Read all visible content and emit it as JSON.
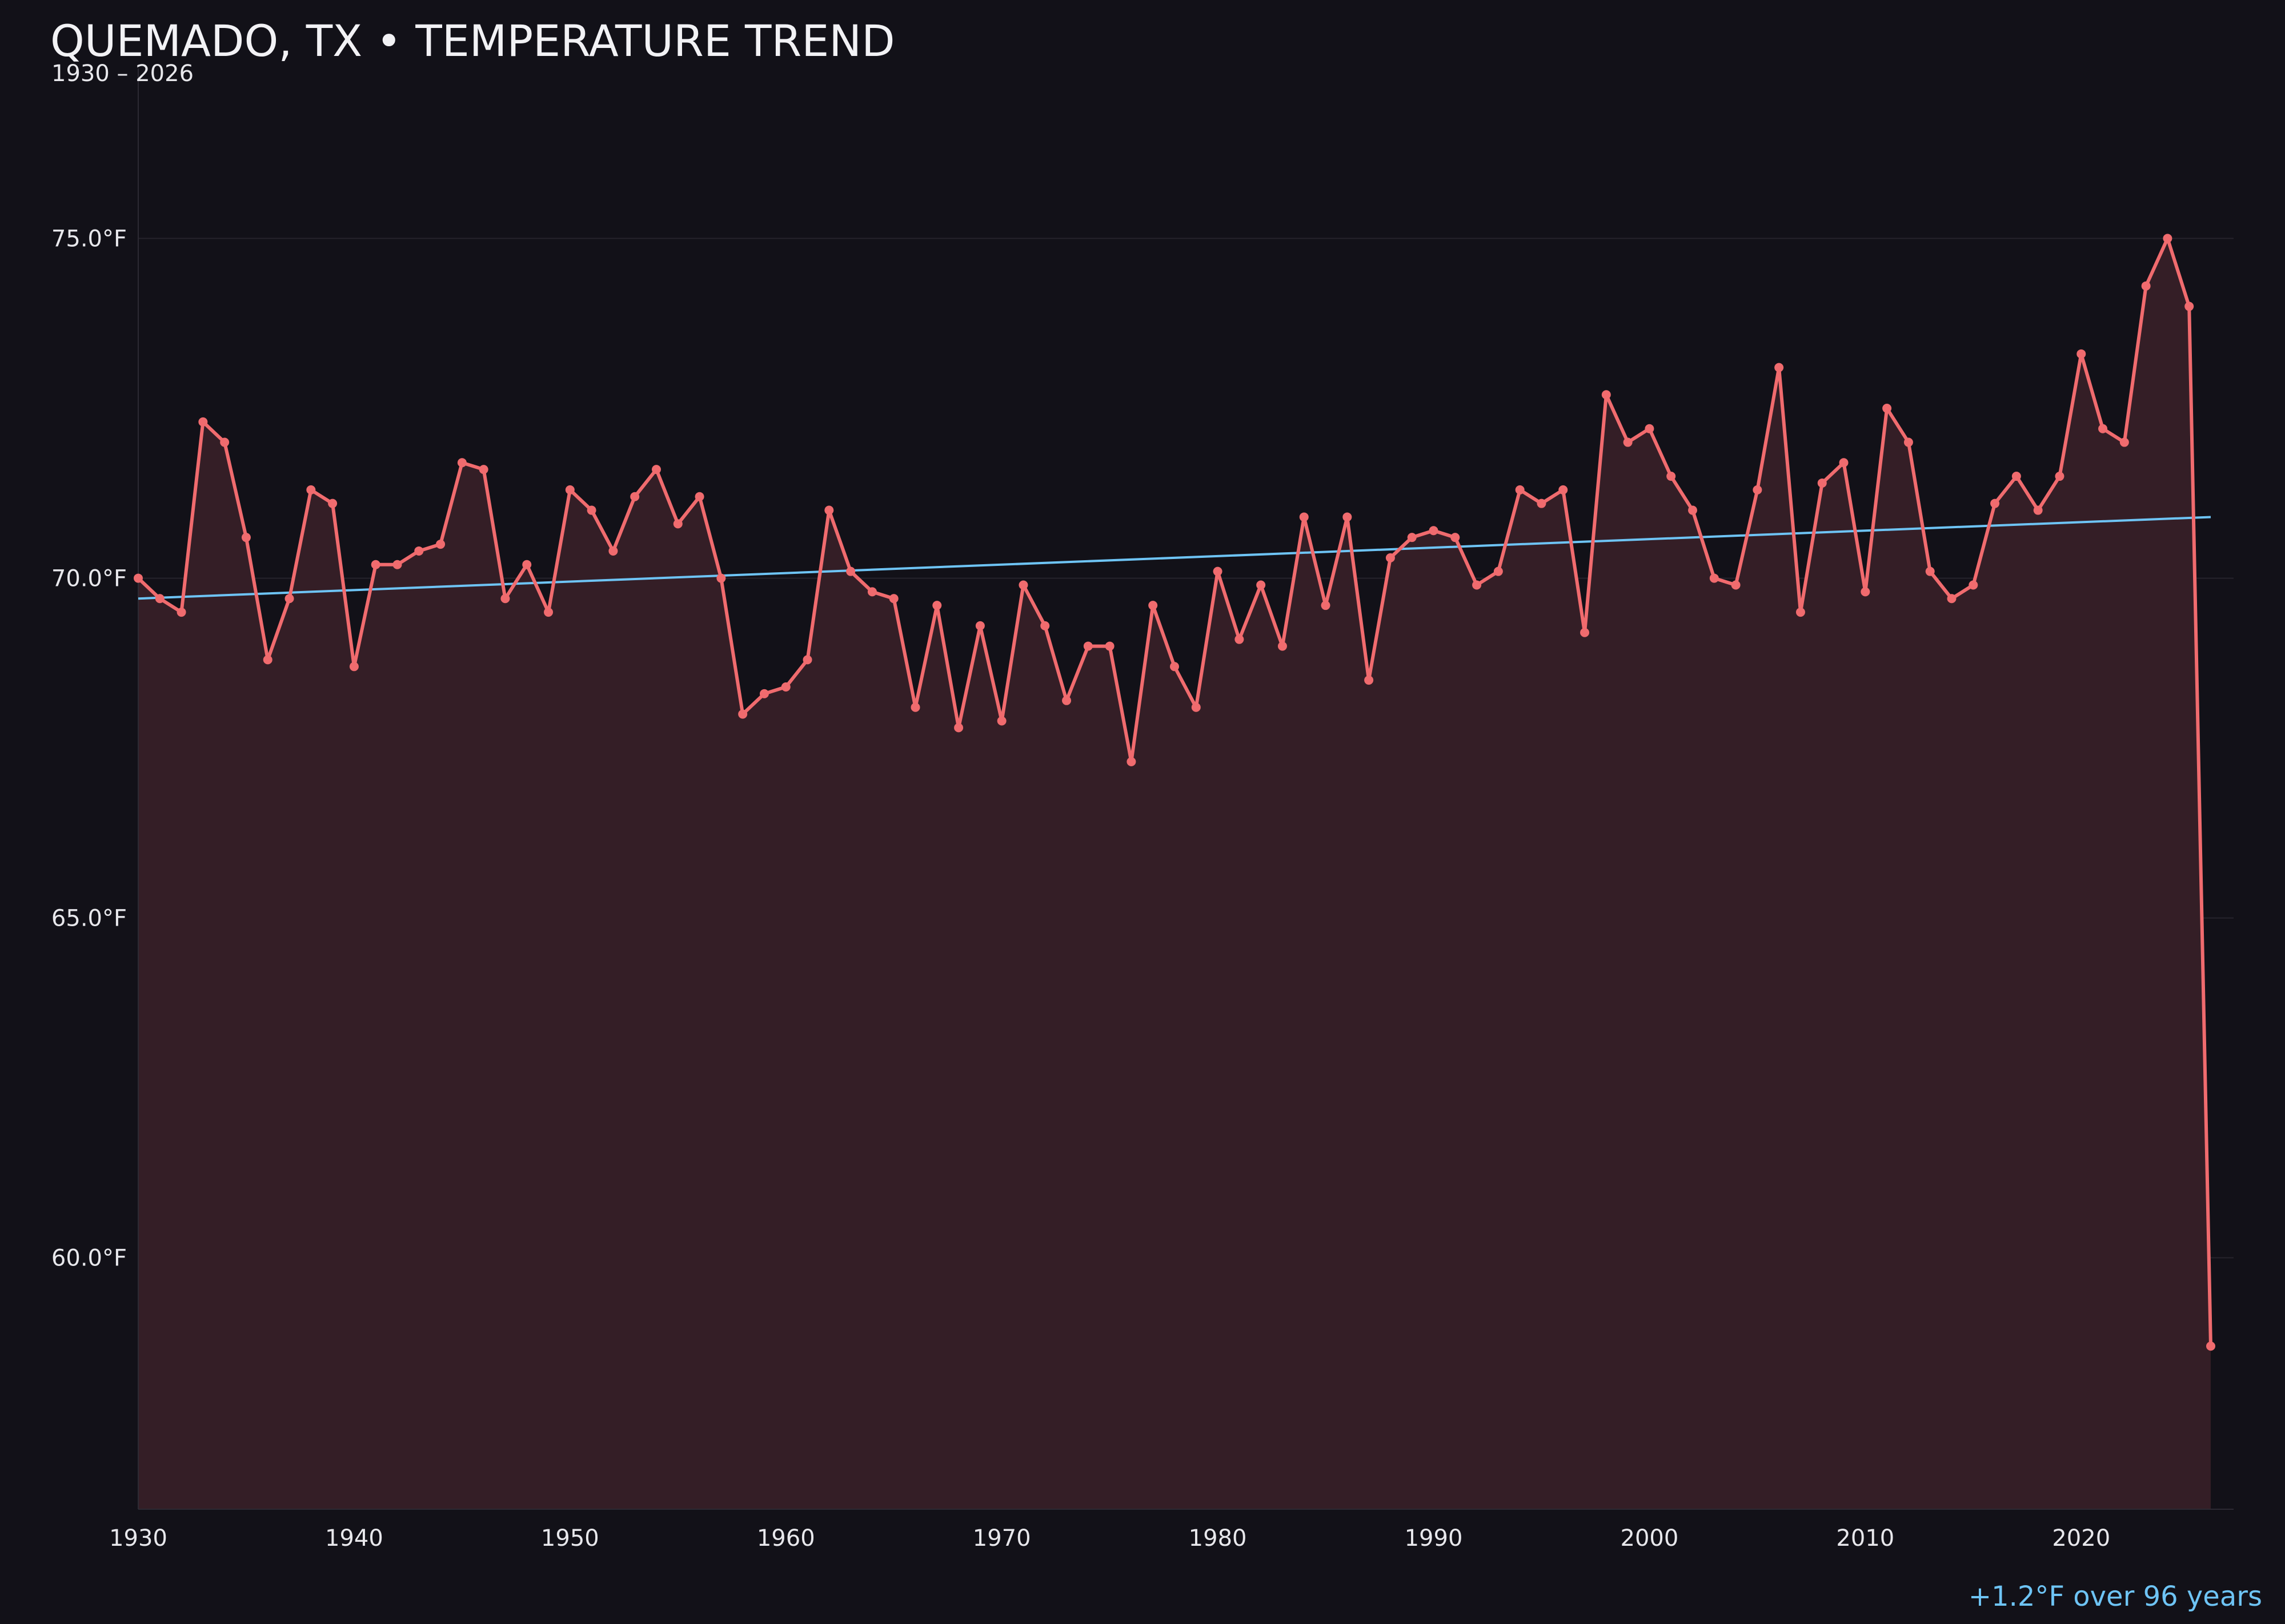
{
  "chart_data": {
    "type": "line",
    "title": "QUEMADO, TX • TEMPERATURE TREND",
    "subtitle": "1930 – 2026",
    "annotation": "+1.2°F over 96 years",
    "xlabel": "",
    "ylabel": "",
    "xlim": [
      1930,
      2026
    ],
    "ylim": [
      56.3,
      77.5
    ],
    "x_ticks": [
      1930,
      1940,
      1950,
      1960,
      1970,
      1980,
      1990,
      2000,
      2010,
      2020
    ],
    "y_ticks": [
      60.0,
      65.0,
      70.0,
      75.0
    ],
    "y_tick_labels": [
      "60.0°F",
      "65.0°F",
      "70.0°F",
      "75.0°F"
    ],
    "grid": "horizontal",
    "legend": "none",
    "colors": {
      "background": "#121118",
      "line": "#f06b6e",
      "area": "#341e26",
      "trend": "#6ec4f5",
      "grid": "#26242c",
      "text": "#e8e8ec",
      "annotation": "#6ec4f5"
    },
    "x": [
      1930,
      1931,
      1932,
      1933,
      1934,
      1935,
      1936,
      1937,
      1938,
      1939,
      1940,
      1941,
      1942,
      1943,
      1944,
      1945,
      1946,
      1947,
      1948,
      1949,
      1950,
      1951,
      1952,
      1953,
      1954,
      1955,
      1956,
      1957,
      1958,
      1959,
      1960,
      1961,
      1962,
      1963,
      1964,
      1965,
      1966,
      1967,
      1968,
      1969,
      1970,
      1971,
      1972,
      1973,
      1974,
      1975,
      1976,
      1977,
      1978,
      1979,
      1980,
      1981,
      1982,
      1983,
      1984,
      1985,
      1986,
      1987,
      1988,
      1989,
      1990,
      1991,
      1992,
      1993,
      1994,
      1995,
      1996,
      1997,
      1998,
      1999,
      2000,
      2001,
      2002,
      2003,
      2004,
      2005,
      2006,
      2007,
      2008,
      2009,
      2010,
      2011,
      2012,
      2013,
      2014,
      2015,
      2016,
      2017,
      2018,
      2019,
      2020,
      2021,
      2022,
      2023,
      2024,
      2025,
      2026
    ],
    "series": [
      {
        "values": [
          70.0,
          69.7,
          69.5,
          72.3,
          72.0,
          70.6,
          68.8,
          69.7,
          71.3,
          71.1,
          68.7,
          70.2,
          70.2,
          70.4,
          70.5,
          71.7,
          71.6,
          69.7,
          70.2,
          69.5,
          71.3,
          71.0,
          70.4,
          71.2,
          71.6,
          70.8,
          71.2,
          70.0,
          68.0,
          68.3,
          68.4,
          68.8,
          71.0,
          70.1,
          69.8,
          69.7,
          68.1,
          69.6,
          67.8,
          69.3,
          67.9,
          69.9,
          69.3,
          68.2,
          69.0,
          69.0,
          67.3,
          69.6,
          68.7,
          68.1,
          70.1,
          69.1,
          69.9,
          69.0,
          70.9,
          69.6,
          70.9,
          68.5,
          70.3,
          70.6,
          70.7,
          70.6,
          69.9,
          70.1,
          71.3,
          71.1,
          71.3,
          69.2,
          72.7,
          72.0,
          72.2,
          71.5,
          71.0,
          70.0,
          69.9,
          71.3,
          73.1,
          69.5,
          71.4,
          71.7,
          69.8,
          72.5,
          72.0,
          70.1,
          69.7,
          69.9,
          71.1,
          71.5,
          71.0,
          71.5,
          73.3,
          72.2,
          72.0,
          74.3,
          75.0,
          74.0,
          58.7
        ]
      }
    ],
    "trend": {
      "x": [
        1930,
        2026
      ],
      "y": [
        69.7,
        70.9
      ]
    }
  }
}
